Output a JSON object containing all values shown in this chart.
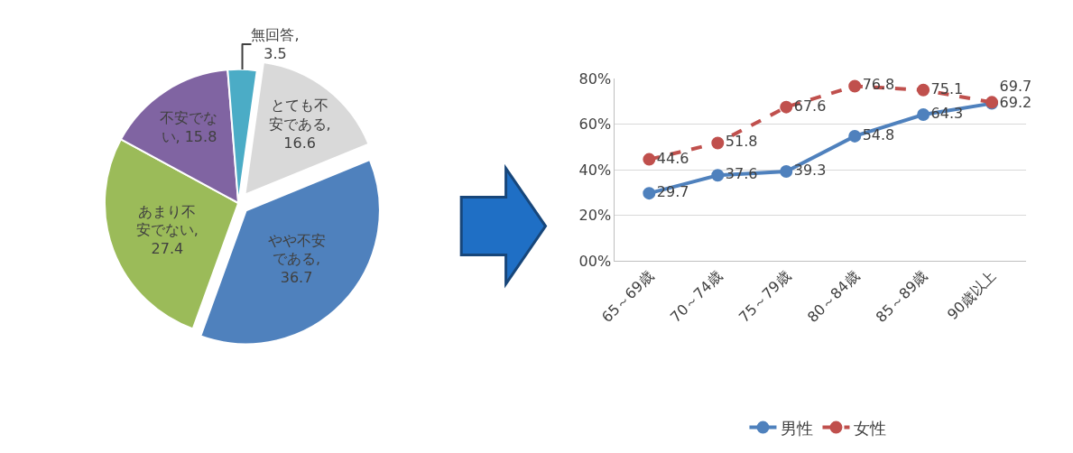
{
  "chart_data": [
    {
      "type": "pie",
      "categories": [
        "とても不安である",
        "やや不安である",
        "あまり不安でない",
        "不安でない",
        "無回答"
      ],
      "values": [
        16.6,
        36.7,
        27.4,
        15.8,
        3.5
      ],
      "colors": [
        "#d9d9d9",
        "#4f81bd",
        "#9bbb59",
        "#8064a2",
        "#4bacc6"
      ],
      "value_labels": [
        ", 16.6",
        ", 36.7",
        ", 27.4",
        ", 15.8",
        ", 3.5"
      ]
    },
    {
      "type": "line",
      "categories": [
        "65～69歳",
        "70～74歳",
        "75～79歳",
        "80～84歳",
        "85～89歳",
        "90歳以上"
      ],
      "series": [
        {
          "name": "男性",
          "color": "#4f81bd",
          "values": [
            29.7,
            37.6,
            39.3,
            54.8,
            64.3,
            69.2
          ],
          "line_style": "solid"
        },
        {
          "name": "女性",
          "color": "#c0504d",
          "values": [
            44.6,
            51.8,
            67.6,
            76.8,
            75.1,
            69.7
          ],
          "line_style": "dashed"
        }
      ],
      "ylim": [
        0,
        80
      ],
      "yticks": [
        {
          "value": 0,
          "label": "00%"
        },
        {
          "value": 20,
          "label": "20%"
        },
        {
          "value": 40,
          "label": "40%"
        },
        {
          "value": 60,
          "label": "60%"
        },
        {
          "value": 80,
          "label": "80%"
        }
      ],
      "grid": "y",
      "legend": "bottom",
      "marker": "circle",
      "data_labels": true
    }
  ]
}
